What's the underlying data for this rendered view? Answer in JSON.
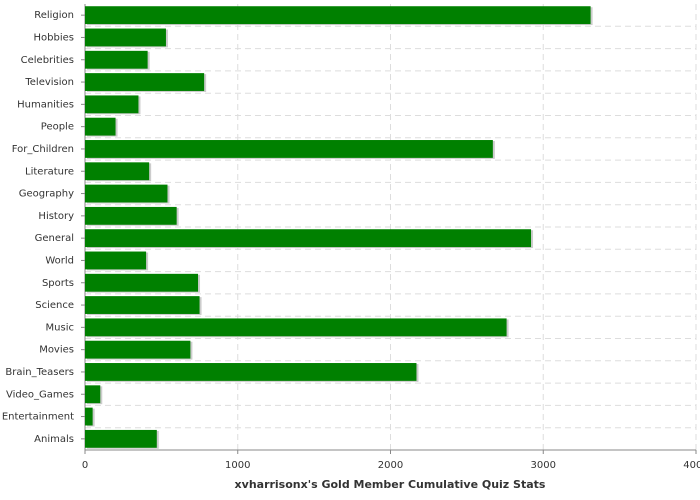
{
  "chart_data": {
    "type": "bar",
    "orientation": "horizontal",
    "x_label": "xvharrisonx's Gold Member Cumulative Quiz Stats",
    "categories": [
      "Religion",
      "Hobbies",
      "Celebrities",
      "Television",
      "Humanities",
      "People",
      "For_Children",
      "Literature",
      "Geography",
      "History",
      "General",
      "World",
      "Sports",
      "Science",
      "Music",
      "Movies",
      "Brain_Teasers",
      "Video_Games",
      "Entertainment",
      "Animals"
    ],
    "values": [
      3310,
      530,
      410,
      780,
      350,
      200,
      2670,
      420,
      540,
      600,
      2920,
      400,
      740,
      750,
      2760,
      690,
      2170,
      100,
      50,
      470
    ],
    "color": "#008000",
    "xlim": [
      0,
      4000
    ],
    "xticks": [
      0,
      1000,
      2000,
      3000,
      4000
    ],
    "grid": true
  }
}
